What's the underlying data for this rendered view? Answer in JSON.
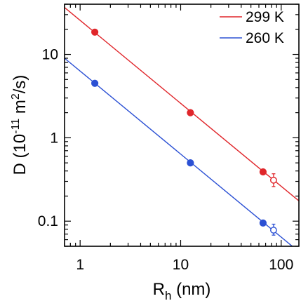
{
  "chart_data": {
    "type": "scatter",
    "title": "",
    "xlabel": {
      "main": "R",
      "sub": "h",
      "rest": " (nm)"
    },
    "ylabel": {
      "main": "D (10",
      "sup1": "-11",
      "mid": " m",
      "sup2": "2",
      "rest": "/s)"
    },
    "xscale": "log",
    "yscale": "log",
    "xlim": [
      0.7,
      150
    ],
    "ylim": [
      0.05,
      40
    ],
    "grid": false,
    "legend_position": "top-right",
    "x_ticks": [
      1,
      10,
      100
    ],
    "x_tick_labels": [
      "1",
      "10",
      "100"
    ],
    "y_ticks": [
      0.1,
      1,
      10
    ],
    "y_tick_labels": [
      "0.1",
      "1",
      "10"
    ],
    "series": [
      {
        "name": "299 K",
        "color": "#e0262b",
        "points": [
          {
            "x": 1.4,
            "y": 18.5
          },
          {
            "x": 12.5,
            "y": 2.0
          },
          {
            "x": 66,
            "y": 0.39
          }
        ],
        "open_points": [
          {
            "x": 84,
            "y": 0.31,
            "y_err": [
              0.26,
              0.37
            ]
          }
        ],
        "fit_line": [
          {
            "x": 0.7,
            "y": 36.5
          },
          {
            "x": 150,
            "y": 0.175
          }
        ]
      },
      {
        "name": "260 K",
        "color": "#2b50d4",
        "points": [
          {
            "x": 1.4,
            "y": 4.5
          },
          {
            "x": 12.5,
            "y": 0.5
          },
          {
            "x": 66,
            "y": 0.095
          }
        ],
        "open_points": [
          {
            "x": 84,
            "y": 0.078,
            "y_err": [
              0.068,
              0.092
            ]
          }
        ],
        "fit_line": [
          {
            "x": 0.7,
            "y": 9.0
          },
          {
            "x": 150,
            "y": 0.043
          }
        ]
      }
    ]
  }
}
